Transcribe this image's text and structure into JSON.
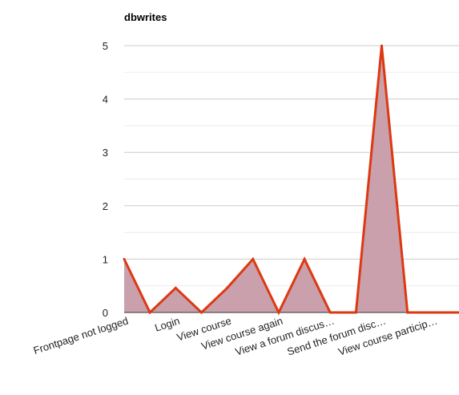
{
  "chart_data": {
    "type": "area",
    "title": "dbwrites",
    "xlabel": "",
    "ylabel": "",
    "ylim": [
      0,
      5
    ],
    "yticks": [
      0,
      1,
      2,
      3,
      4,
      5
    ],
    "grid": true,
    "legend": "none",
    "categories": [
      "Frontpage not logged",
      "",
      "Login",
      "",
      "View course",
      "",
      "View course again",
      "",
      "View a forum discus…",
      "",
      "Send the forum disc…",
      "",
      "View course particip…",
      ""
    ],
    "series": [
      {
        "values": [
          1,
          0,
          0.46,
          0,
          0.46,
          1,
          0,
          1,
          0,
          0,
          5,
          0,
          0,
          0
        ],
        "color": "#dc3912",
        "fill": "#c9a0ab"
      }
    ]
  }
}
